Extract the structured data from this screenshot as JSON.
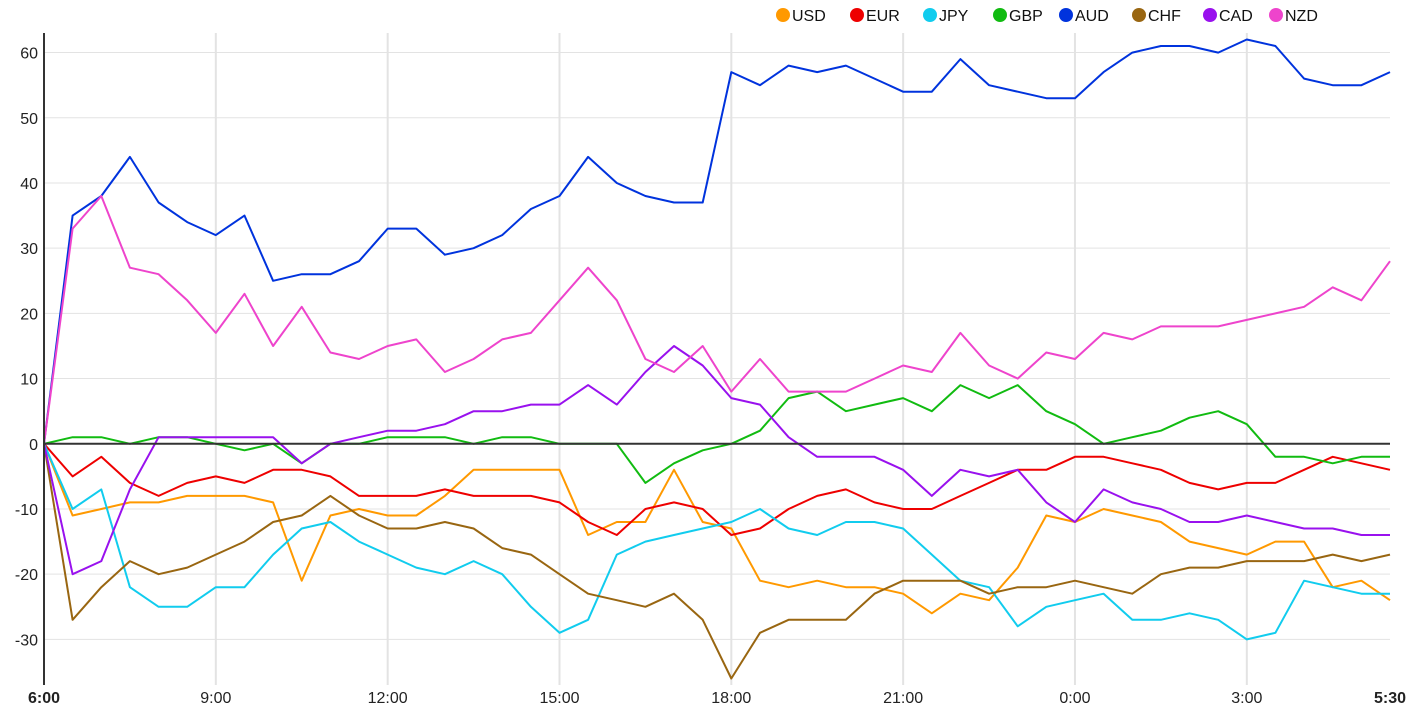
{
  "chart_data": {
    "type": "line",
    "title": "",
    "xlabel": "",
    "ylabel": "",
    "ylim": [
      -37,
      63
    ],
    "yticks": [
      -30,
      -20,
      -10,
      0,
      10,
      20,
      30,
      40,
      50,
      60
    ],
    "xticks": [
      "6:00",
      "9:00",
      "12:00",
      "15:00",
      "18:00",
      "21:00",
      "0:00",
      "3:00",
      "5:30"
    ],
    "grid": true,
    "legend_position": "top-right",
    "x": [
      "6:00",
      "6:30",
      "7:00",
      "7:30",
      "8:00",
      "8:30",
      "9:00",
      "9:30",
      "10:00",
      "10:30",
      "11:00",
      "11:30",
      "12:00",
      "12:30",
      "13:00",
      "13:30",
      "14:00",
      "14:30",
      "15:00",
      "15:30",
      "16:00",
      "16:30",
      "17:00",
      "17:30",
      "18:00",
      "18:30",
      "19:00",
      "19:30",
      "20:00",
      "20:30",
      "21:00",
      "21:30",
      "22:00",
      "22:30",
      "23:00",
      "23:30",
      "0:00",
      "0:30",
      "1:00",
      "1:30",
      "2:00",
      "2:30",
      "3:00",
      "3:30",
      "4:00",
      "4:30",
      "5:00",
      "5:30"
    ],
    "series": [
      {
        "name": "USD",
        "color": "#ff9900",
        "values": [
          0,
          -11,
          -10,
          -9,
          -9,
          -8,
          -8,
          -8,
          -9,
          -21,
          -11,
          -10,
          -11,
          -11,
          -8,
          -4,
          -4,
          -4,
          -4,
          -14,
          -12,
          -12,
          -4,
          -12,
          -13,
          -21,
          -22,
          -21,
          -22,
          -22,
          -23,
          -26,
          -23,
          -24,
          -19,
          -11,
          -12,
          -10,
          -11,
          -12,
          -15,
          -16,
          -17,
          -15,
          -15,
          -22,
          -21,
          -24
        ]
      },
      {
        "name": "EUR",
        "color": "#ee0000",
        "values": [
          0,
          -5,
          -2,
          -6,
          -8,
          -6,
          -5,
          -6,
          -4,
          -4,
          -5,
          -8,
          -8,
          -8,
          -7,
          -8,
          -8,
          -8,
          -9,
          -12,
          -14,
          -10,
          -9,
          -10,
          -14,
          -13,
          -10,
          -8,
          -7,
          -9,
          -10,
          -10,
          -8,
          -6,
          -4,
          -4,
          -2,
          -2,
          -3,
          -4,
          -6,
          -7,
          -6,
          -6,
          -4,
          -2,
          -3,
          -4
        ]
      },
      {
        "name": "JPY",
        "color": "#11ccee",
        "values": [
          0,
          -10,
          -7,
          -22,
          -25,
          -25,
          -22,
          -22,
          -17,
          -13,
          -12,
          -15,
          -17,
          -19,
          -20,
          -18,
          -20,
          -25,
          -29,
          -27,
          -17,
          -15,
          -14,
          -13,
          -12,
          -10,
          -13,
          -14,
          -12,
          -12,
          -13,
          -17,
          -21,
          -22,
          -28,
          -25,
          -24,
          -23,
          -27,
          -27,
          -26,
          -27,
          -30,
          -29,
          -21,
          -22,
          -23,
          -23
        ]
      },
      {
        "name": "GBP",
        "color": "#11bb11",
        "values": [
          0,
          1,
          1,
          0,
          1,
          1,
          0,
          -1,
          0,
          -3,
          0,
          0,
          1,
          1,
          1,
          0,
          1,
          1,
          0,
          0,
          0,
          -6,
          -3,
          -1,
          0,
          2,
          7,
          8,
          5,
          6,
          7,
          5,
          9,
          7,
          9,
          5,
          3,
          0,
          1,
          2,
          4,
          5,
          3,
          -2,
          -2,
          -3,
          -2,
          -2
        ]
      },
      {
        "name": "AUD",
        "color": "#0033dd",
        "values": [
          0,
          35,
          38,
          44,
          37,
          34,
          32,
          35,
          25,
          26,
          26,
          28,
          33,
          33,
          29,
          30,
          32,
          36,
          38,
          44,
          40,
          38,
          37,
          37,
          57,
          55,
          58,
          57,
          58,
          56,
          54,
          54,
          59,
          55,
          54,
          53,
          53,
          57,
          60,
          61,
          61,
          60,
          62,
          61,
          56,
          55,
          55,
          57
        ]
      },
      {
        "name": "CHF",
        "color": "#996611",
        "values": [
          0,
          -27,
          -22,
          -18,
          -20,
          -19,
          -17,
          -15,
          -12,
          -11,
          -8,
          -11,
          -13,
          -13,
          -12,
          -13,
          -16,
          -17,
          -20,
          -23,
          -24,
          -25,
          -23,
          -27,
          -36,
          -29,
          -27,
          -27,
          -27,
          -23,
          -21,
          -21,
          -21,
          -23,
          -22,
          -22,
          -21,
          -22,
          -23,
          -20,
          -19,
          -19,
          -18,
          -18,
          -18,
          -17,
          -18,
          -17
        ]
      },
      {
        "name": "CAD",
        "color": "#9911ee",
        "values": [
          0,
          -20,
          -18,
          -7,
          1,
          1,
          1,
          1,
          1,
          -3,
          0,
          1,
          2,
          2,
          3,
          5,
          5,
          6,
          6,
          9,
          6,
          11,
          15,
          12,
          7,
          6,
          1,
          -2,
          -2,
          -2,
          -4,
          -8,
          -4,
          -5,
          -4,
          -9,
          -12,
          -7,
          -9,
          -10,
          -12,
          -12,
          -11,
          -12,
          -13,
          -13,
          -14,
          -14
        ]
      },
      {
        "name": "NZD",
        "color": "#ee44cc",
        "values": [
          0,
          33,
          38,
          27,
          26,
          22,
          17,
          23,
          15,
          21,
          14,
          13,
          15,
          16,
          11,
          13,
          16,
          17,
          22,
          27,
          22,
          13,
          11,
          15,
          8,
          13,
          8,
          8,
          8,
          10,
          12,
          11,
          17,
          12,
          10,
          14,
          13,
          17,
          16,
          18,
          18,
          18,
          19,
          20,
          21,
          24,
          22,
          28
        ]
      }
    ]
  }
}
